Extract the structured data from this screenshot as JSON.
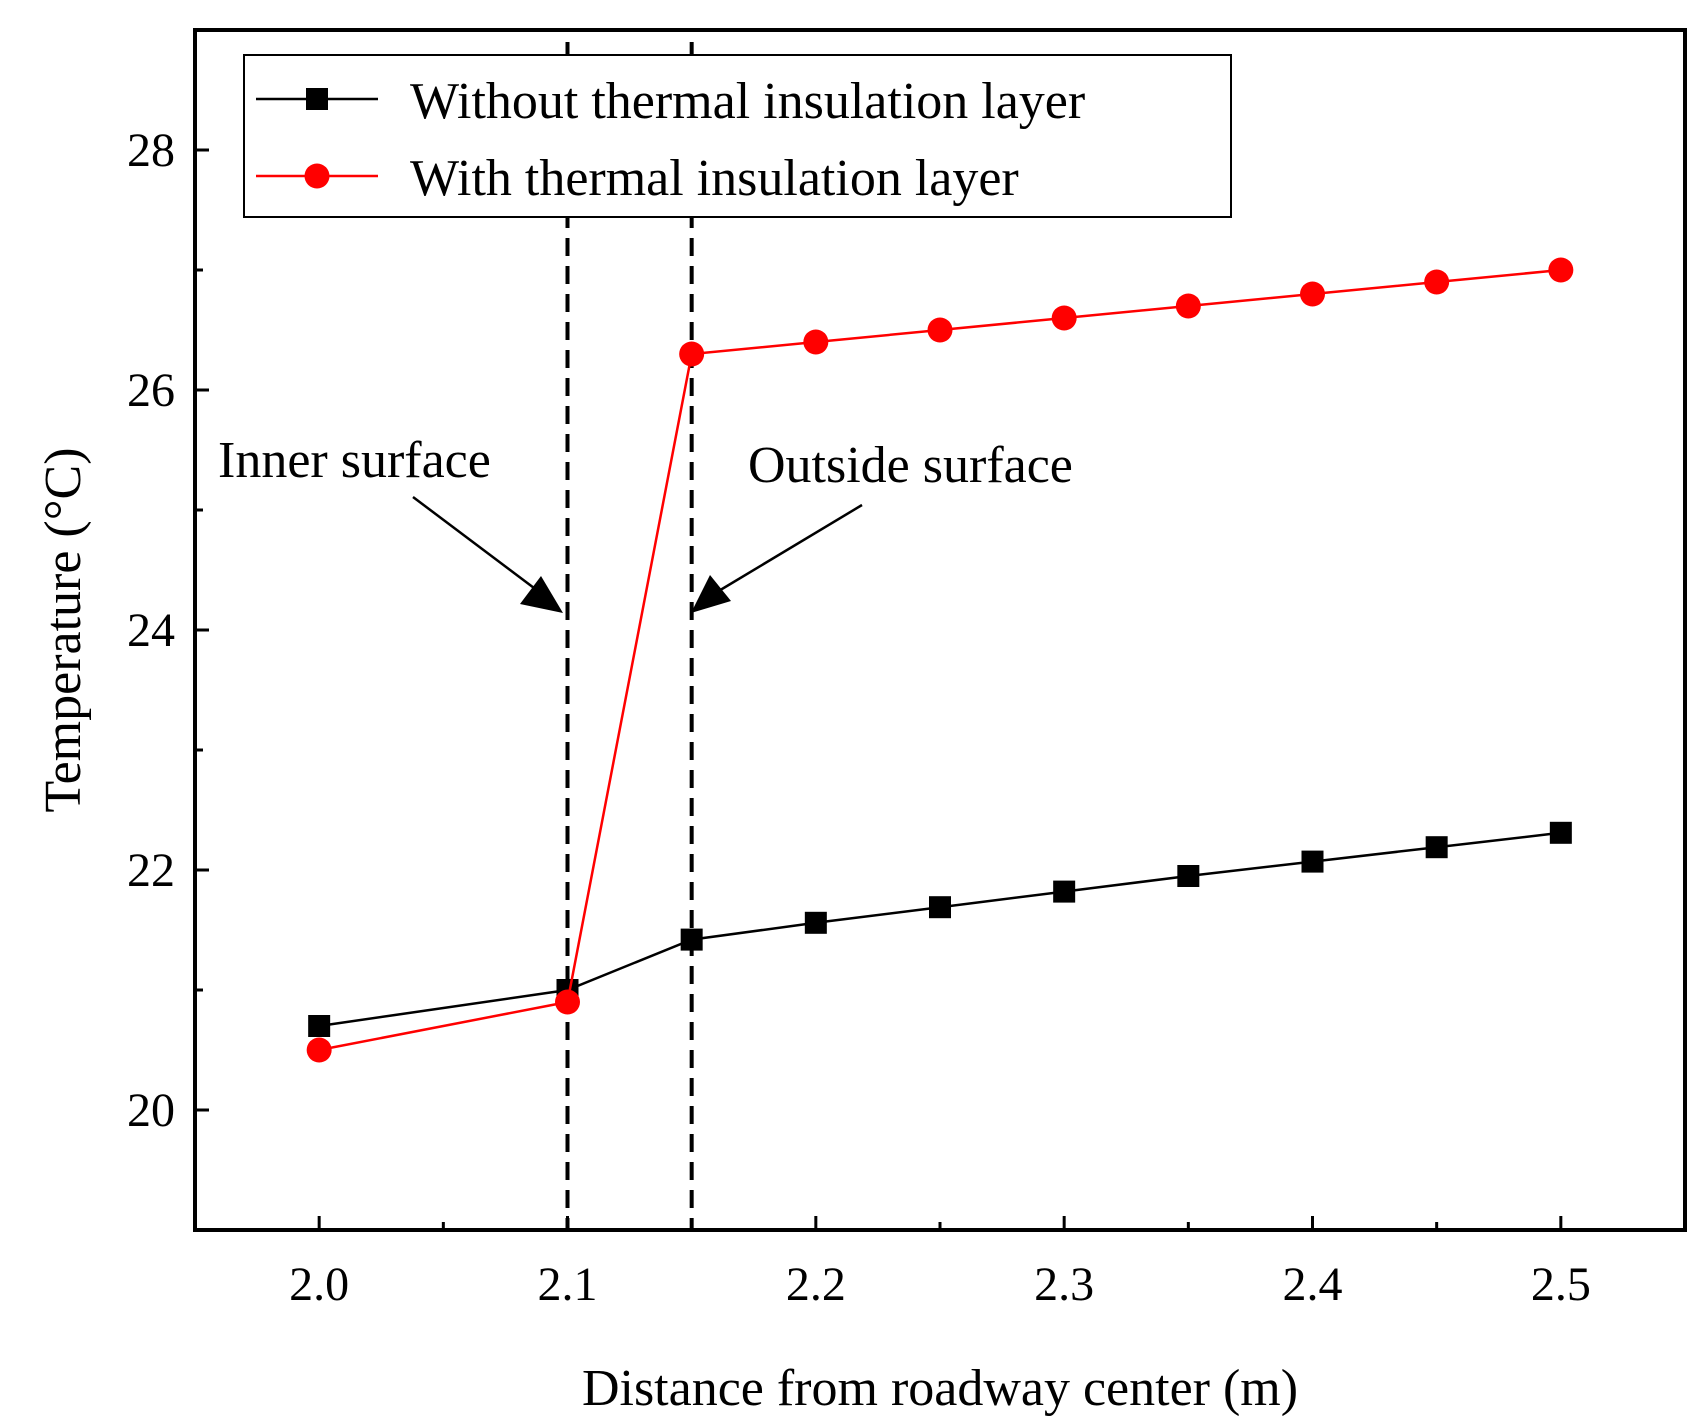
{
  "chart_data": {
    "type": "line",
    "title": "",
    "xlabel": "Distance from roadway center (m)",
    "ylabel": "Temperature (°C)",
    "xlim": [
      1.95,
      2.55
    ],
    "ylim": [
      19,
      29
    ],
    "x_ticks": [
      2.0,
      2.1,
      2.2,
      2.3,
      2.4,
      2.5
    ],
    "x_tick_labels": [
      "2.0",
      "2.1",
      "2.2",
      "2.3",
      "2.4",
      "2.5"
    ],
    "x_minor_ticks": [
      2.05,
      2.15,
      2.25,
      2.35,
      2.45
    ],
    "y_ticks": [
      20,
      22,
      24,
      26,
      28
    ],
    "y_tick_labels": [
      "20",
      "22",
      "24",
      "26",
      "28"
    ],
    "y_minor_ticks": [
      19,
      21,
      23,
      25,
      27,
      29
    ],
    "grid": false,
    "legend_position": "top-left",
    "series": [
      {
        "name": "Without thermal insulation layer",
        "marker": "square",
        "color": "#000000",
        "x": [
          2.0,
          2.1,
          2.15,
          2.2,
          2.25,
          2.3,
          2.35,
          2.4,
          2.45,
          2.5
        ],
        "y": [
          20.7,
          21.0,
          21.42,
          21.56,
          21.69,
          21.82,
          21.95,
          22.07,
          22.19,
          22.31
        ]
      },
      {
        "name": "With thermal insulation layer",
        "marker": "circle",
        "color": "#ff0000",
        "x": [
          2.0,
          2.1,
          2.15,
          2.2,
          2.25,
          2.3,
          2.35,
          2.4,
          2.45,
          2.5
        ],
        "y": [
          20.5,
          20.9,
          26.3,
          26.4,
          26.5,
          26.6,
          26.7,
          26.8,
          26.9,
          27.0
        ]
      }
    ],
    "reference_lines": [
      {
        "x": 2.1,
        "style": "dashed",
        "color": "#000000"
      },
      {
        "x": 2.15,
        "style": "dashed",
        "color": "#000000"
      }
    ],
    "annotations": [
      {
        "text": "Inner surface",
        "points_to": {
          "x": 2.1,
          "y": 24.1
        }
      },
      {
        "text": "Outside surface",
        "points_to": {
          "x": 2.15,
          "y": 24.1
        }
      }
    ]
  }
}
